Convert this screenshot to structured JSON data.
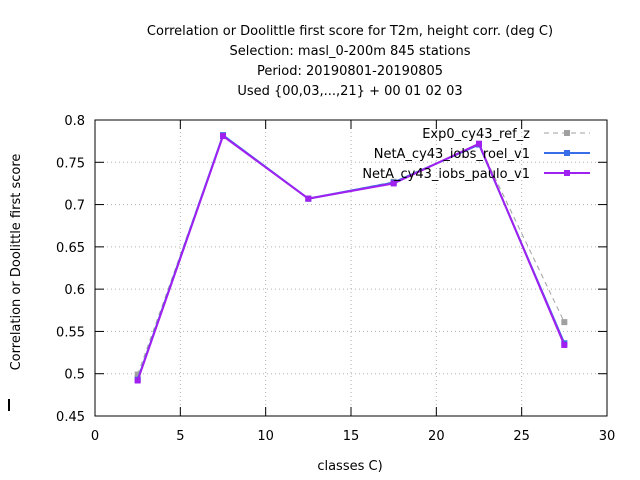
{
  "chart_data": {
    "type": "line",
    "title_lines": [
      "Correlation or Doolittle first score  for T2m, height corr. (deg C)",
      "Selection: masl_0-200m    845 stations",
      "Period: 20190801-20190805",
      "Used {00,03,...,21} + 00 01 02 03"
    ],
    "xlabel": "classes C)",
    "ylabel": "Correlation or Doolittle first score",
    "xlim": [
      0,
      30
    ],
    "ylim": [
      0.45,
      0.8
    ],
    "xticks": [
      "0",
      "5",
      "10",
      "15",
      "20",
      "25",
      "30"
    ],
    "yticks": [
      "0.45",
      "0.5",
      "0.55",
      "0.6",
      "0.65",
      "0.7",
      "0.75",
      "0.8"
    ],
    "grid": true,
    "legend_position": "top-right",
    "x": [
      2.5,
      7.5,
      12.5,
      17.5,
      22.5,
      27.5
    ],
    "series": [
      {
        "name": "Exp0_cy43_ref_z",
        "values": [
          0.499,
          0.782,
          0.707,
          0.727,
          0.771,
          0.561
        ],
        "color": "#a0a0a0",
        "dashed": true
      },
      {
        "name": "NetA_cy43_iobs_roel_v1",
        "values": [
          0.493,
          0.782,
          0.707,
          0.726,
          0.771,
          0.536
        ],
        "color": "#3a6ee8",
        "dashed": false
      },
      {
        "name": "NetA_cy43_iobs_paulo_v1",
        "values": [
          0.492,
          0.781,
          0.707,
          0.725,
          0.772,
          0.534
        ],
        "color": "#a020f0",
        "dashed": false
      }
    ]
  }
}
